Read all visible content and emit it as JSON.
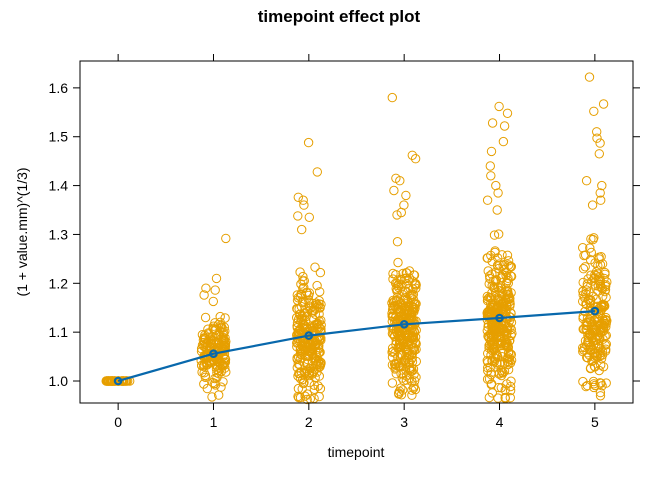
{
  "chart_data": {
    "type": "scatter",
    "title": "timepoint effect plot",
    "xlabel": "timepoint",
    "ylabel": "(1 + value.mm)^(1/3)",
    "xlim": [
      -0.4,
      5.4
    ],
    "ylim": [
      0.955,
      1.655
    ],
    "x_ticks": [
      0,
      1,
      2,
      3,
      4,
      5
    ],
    "y_ticks": [
      1.0,
      1.1,
      1.2,
      1.3,
      1.4,
      1.5,
      1.6
    ],
    "y_tick_labels": [
      "1.0",
      "1.1",
      "1.2",
      "1.3",
      "1.4",
      "1.5",
      "1.6"
    ],
    "grid": false,
    "jitter_width": 0.13,
    "colors": {
      "points": "#E69F00",
      "fit": "#0868AC",
      "frame": "#000000"
    },
    "fit_series": {
      "x": [
        0,
        1,
        2,
        3,
        4,
        5
      ],
      "y": [
        1.0,
        1.056,
        1.093,
        1.116,
        1.129,
        1.143
      ]
    },
    "point_groups": [
      {
        "x": 0,
        "n": 40,
        "center": 1.0,
        "spread": 0.0,
        "lower": 1.0,
        "outliers": []
      },
      {
        "x": 1,
        "n": 170,
        "center": 1.06,
        "spread": 0.045,
        "lower": 0.962,
        "outliers": [
          1.292,
          1.21,
          1.19,
          1.186,
          1.176,
          1.163
        ]
      },
      {
        "x": 2,
        "n": 250,
        "center": 1.09,
        "spread": 0.085,
        "lower": 0.962,
        "outliers": [
          1.488,
          1.428,
          1.376,
          1.37,
          1.36,
          1.338,
          1.335,
          1.31
        ]
      },
      {
        "x": 3,
        "n": 300,
        "center": 1.11,
        "spread": 0.09,
        "lower": 0.962,
        "outliers": [
          1.58,
          1.462,
          1.455,
          1.415,
          1.41,
          1.39,
          1.38,
          1.36,
          1.345,
          1.34
        ]
      },
      {
        "x": 4,
        "n": 320,
        "center": 1.12,
        "spread": 0.1,
        "lower": 0.962,
        "outliers": [
          1.562,
          1.548,
          1.528,
          1.522,
          1.49,
          1.47,
          1.44,
          1.42,
          1.4,
          1.385,
          1.37,
          1.35
        ]
      },
      {
        "x": 5,
        "n": 220,
        "center": 1.13,
        "spread": 0.1,
        "lower": 0.962,
        "outliers": [
          1.622,
          1.567,
          1.552,
          1.51,
          1.497,
          1.487,
          1.465,
          1.41,
          1.4,
          1.385,
          1.37,
          1.36
        ]
      }
    ]
  }
}
